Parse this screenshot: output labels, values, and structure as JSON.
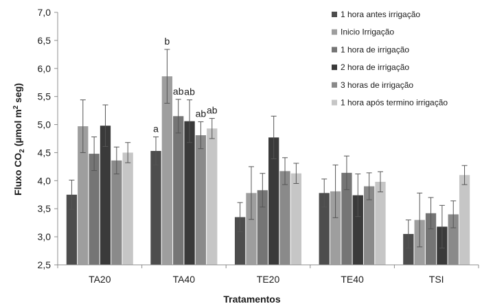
{
  "chart_data": {
    "type": "bar",
    "xlabel": "Tratamentos",
    "ylabel": {
      "prefix": "Fluxo CO",
      "sub": "2",
      "mid": " (µmol m",
      "sup": "2",
      "suffix": " seg)"
    },
    "ylim": [
      2.5,
      7.0
    ],
    "yticks": [
      "2,5",
      "3,0",
      "3,5",
      "4,0",
      "4,5",
      "5,0",
      "5,5",
      "6,0",
      "6,5",
      "7,0"
    ],
    "ytick_values": [
      2.5,
      3.0,
      3.5,
      4.0,
      4.5,
      5.0,
      5.5,
      6.0,
      6.5,
      7.0
    ],
    "grid": false,
    "legend_position": "top-right",
    "categories": [
      "TA20",
      "TA40",
      "TE20",
      "TE40",
      "TSI"
    ],
    "series": [
      {
        "name": "1 hora antes irrigação",
        "color": "#4d4d4d",
        "values": [
          3.75,
          4.53,
          3.35,
          3.78,
          3.05
        ],
        "errors": [
          0.26,
          0.25,
          0.26,
          0.25,
          0.25
        ]
      },
      {
        "name": "Inicio Irrigação",
        "color": "#9e9e9e",
        "values": [
          4.97,
          5.86,
          3.78,
          3.81,
          3.3
        ],
        "errors": [
          0.47,
          0.48,
          0.47,
          0.47,
          0.48
        ]
      },
      {
        "name": "1 hora de irrigação",
        "color": "#757575",
        "values": [
          4.48,
          5.15,
          3.83,
          4.14,
          3.42
        ],
        "errors": [
          0.3,
          0.3,
          0.3,
          0.3,
          0.28
        ]
      },
      {
        "name": "2 hora de irrigação",
        "color": "#3a3a3a",
        "values": [
          4.98,
          5.06,
          4.77,
          3.74,
          3.18
        ],
        "errors": [
          0.37,
          0.38,
          0.38,
          0.38,
          0.38
        ]
      },
      {
        "name": "3 horas de irrigação",
        "color": "#8a8a8a",
        "values": [
          4.36,
          4.81,
          4.17,
          3.9,
          3.4
        ],
        "errors": [
          0.24,
          0.24,
          0.24,
          0.24,
          0.24
        ]
      },
      {
        "name": "1 hora após termino irrigação",
        "color": "#c6c6c6",
        "values": [
          4.5,
          4.93,
          4.13,
          3.98,
          4.1
        ],
        "errors": [
          0.18,
          0.18,
          0.18,
          0.18,
          0.17
        ]
      }
    ],
    "annotations": [
      {
        "category": 1,
        "series": 0,
        "text": "a"
      },
      {
        "category": 1,
        "series": 1,
        "text": "b"
      },
      {
        "category": 1,
        "series": 2,
        "text": "ab"
      },
      {
        "category": 1,
        "series": 3,
        "text": "ab"
      },
      {
        "category": 1,
        "series": 4,
        "text": "ab"
      },
      {
        "category": 1,
        "series": 5,
        "text": "ab"
      }
    ]
  }
}
